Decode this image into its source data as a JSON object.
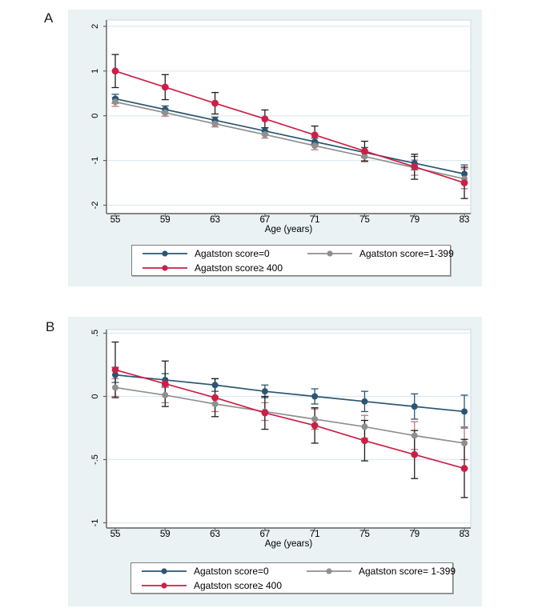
{
  "figure": {
    "panels": [
      {
        "label": "A",
        "xlabel": "Age (years)"
      },
      {
        "label": "B",
        "xlabel": "Age (years)"
      }
    ]
  },
  "colors": {
    "navy": "#2a5674",
    "red": "#cc1f46",
    "gray": "#8f8f8f",
    "maroon_error": "#bf767c",
    "black_error": "#1f1f1f",
    "panel_background": "#eaf2f3",
    "plot_background": "#ffffff",
    "gridline": "#dfe9f0",
    "axis": "#5f5f5f",
    "plot_border": "#c9d9e0",
    "tick_text": "#000000"
  },
  "chart_data": [
    {
      "type": "line",
      "panel": "A",
      "x": [
        55,
        59,
        63,
        67,
        71,
        75,
        79,
        83
      ],
      "xlabel": "Age (years)",
      "yticks": [
        2,
        1,
        0,
        -1,
        -2
      ],
      "ytick_labels": [
        "2",
        "1",
        "0",
        "-1",
        "-2"
      ],
      "ylim": [
        -2.19,
        2.14
      ],
      "grid": true,
      "legend_position": "bottom",
      "error_bars": true,
      "series": [
        {
          "key": "navy",
          "name": "Agatston score=0",
          "color": "#2a5674",
          "err_color": "#2a5674",
          "values": [
            0.38,
            0.14,
            -0.1,
            -0.34,
            -0.58,
            -0.82,
            -1.06,
            -1.3
          ],
          "ci_half_width": [
            0.1,
            0.08,
            0.07,
            0.07,
            0.08,
            0.11,
            0.15,
            0.2
          ]
        },
        {
          "key": "gray",
          "name": "Agatston score=1-399",
          "color": "#8f8f8f",
          "err_color": "#bf767c",
          "values": [
            0.31,
            0.07,
            -0.18,
            -0.42,
            -0.67,
            -0.91,
            -1.16,
            -1.41
          ],
          "ci_half_width": [
            0.1,
            0.08,
            0.07,
            0.08,
            0.09,
            0.12,
            0.17,
            0.22
          ]
        },
        {
          "key": "red",
          "name": "Agatston score≥ 400",
          "color": "#cc1f46",
          "err_color": "#1f1f1f",
          "values": [
            1.0,
            0.64,
            0.28,
            -0.07,
            -0.43,
            -0.79,
            -1.14,
            -1.5
          ],
          "ci_half_width": [
            0.37,
            0.28,
            0.24,
            0.2,
            0.2,
            0.22,
            0.28,
            0.35
          ]
        }
      ]
    },
    {
      "type": "line",
      "panel": "B",
      "x": [
        55,
        59,
        63,
        67,
        71,
        75,
        79,
        83
      ],
      "xlabel": "Age (years)",
      "yticks": [
        0.5,
        0,
        -0.5,
        -1
      ],
      "ytick_labels": [
        ".5",
        "0",
        "-.5",
        "-1"
      ],
      "ylim": [
        -1.04,
        0.53
      ],
      "grid": true,
      "legend_position": "bottom",
      "error_bars": true,
      "series": [
        {
          "key": "navy",
          "name": "Agatston score=0",
          "color": "#2a5674",
          "err_color": "#2a5674",
          "values": [
            0.17,
            0.13,
            0.09,
            0.04,
            0.0,
            -0.04,
            -0.08,
            -0.12
          ],
          "ci_half_width": [
            0.06,
            0.05,
            0.05,
            0.05,
            0.06,
            0.08,
            0.1,
            0.13
          ]
        },
        {
          "key": "gray",
          "name": "Agatston score= 1-399",
          "color": "#8f8f8f",
          "err_color": "#bf767c",
          "values": [
            0.07,
            0.01,
            -0.06,
            -0.12,
            -0.18,
            -0.24,
            -0.31,
            -0.37
          ],
          "ci_half_width": [
            0.07,
            0.06,
            0.06,
            0.07,
            0.08,
            0.09,
            0.11,
            0.13
          ]
        },
        {
          "key": "red",
          "name": "Agatston score≥ 400",
          "color": "#cc1f46",
          "err_color": "#1f1f1f",
          "values": [
            0.21,
            0.1,
            -0.01,
            -0.13,
            -0.23,
            -0.35,
            -0.46,
            -0.57
          ],
          "ci_half_width": [
            0.22,
            0.18,
            0.15,
            0.13,
            0.14,
            0.16,
            0.19,
            0.23
          ]
        }
      ]
    }
  ]
}
